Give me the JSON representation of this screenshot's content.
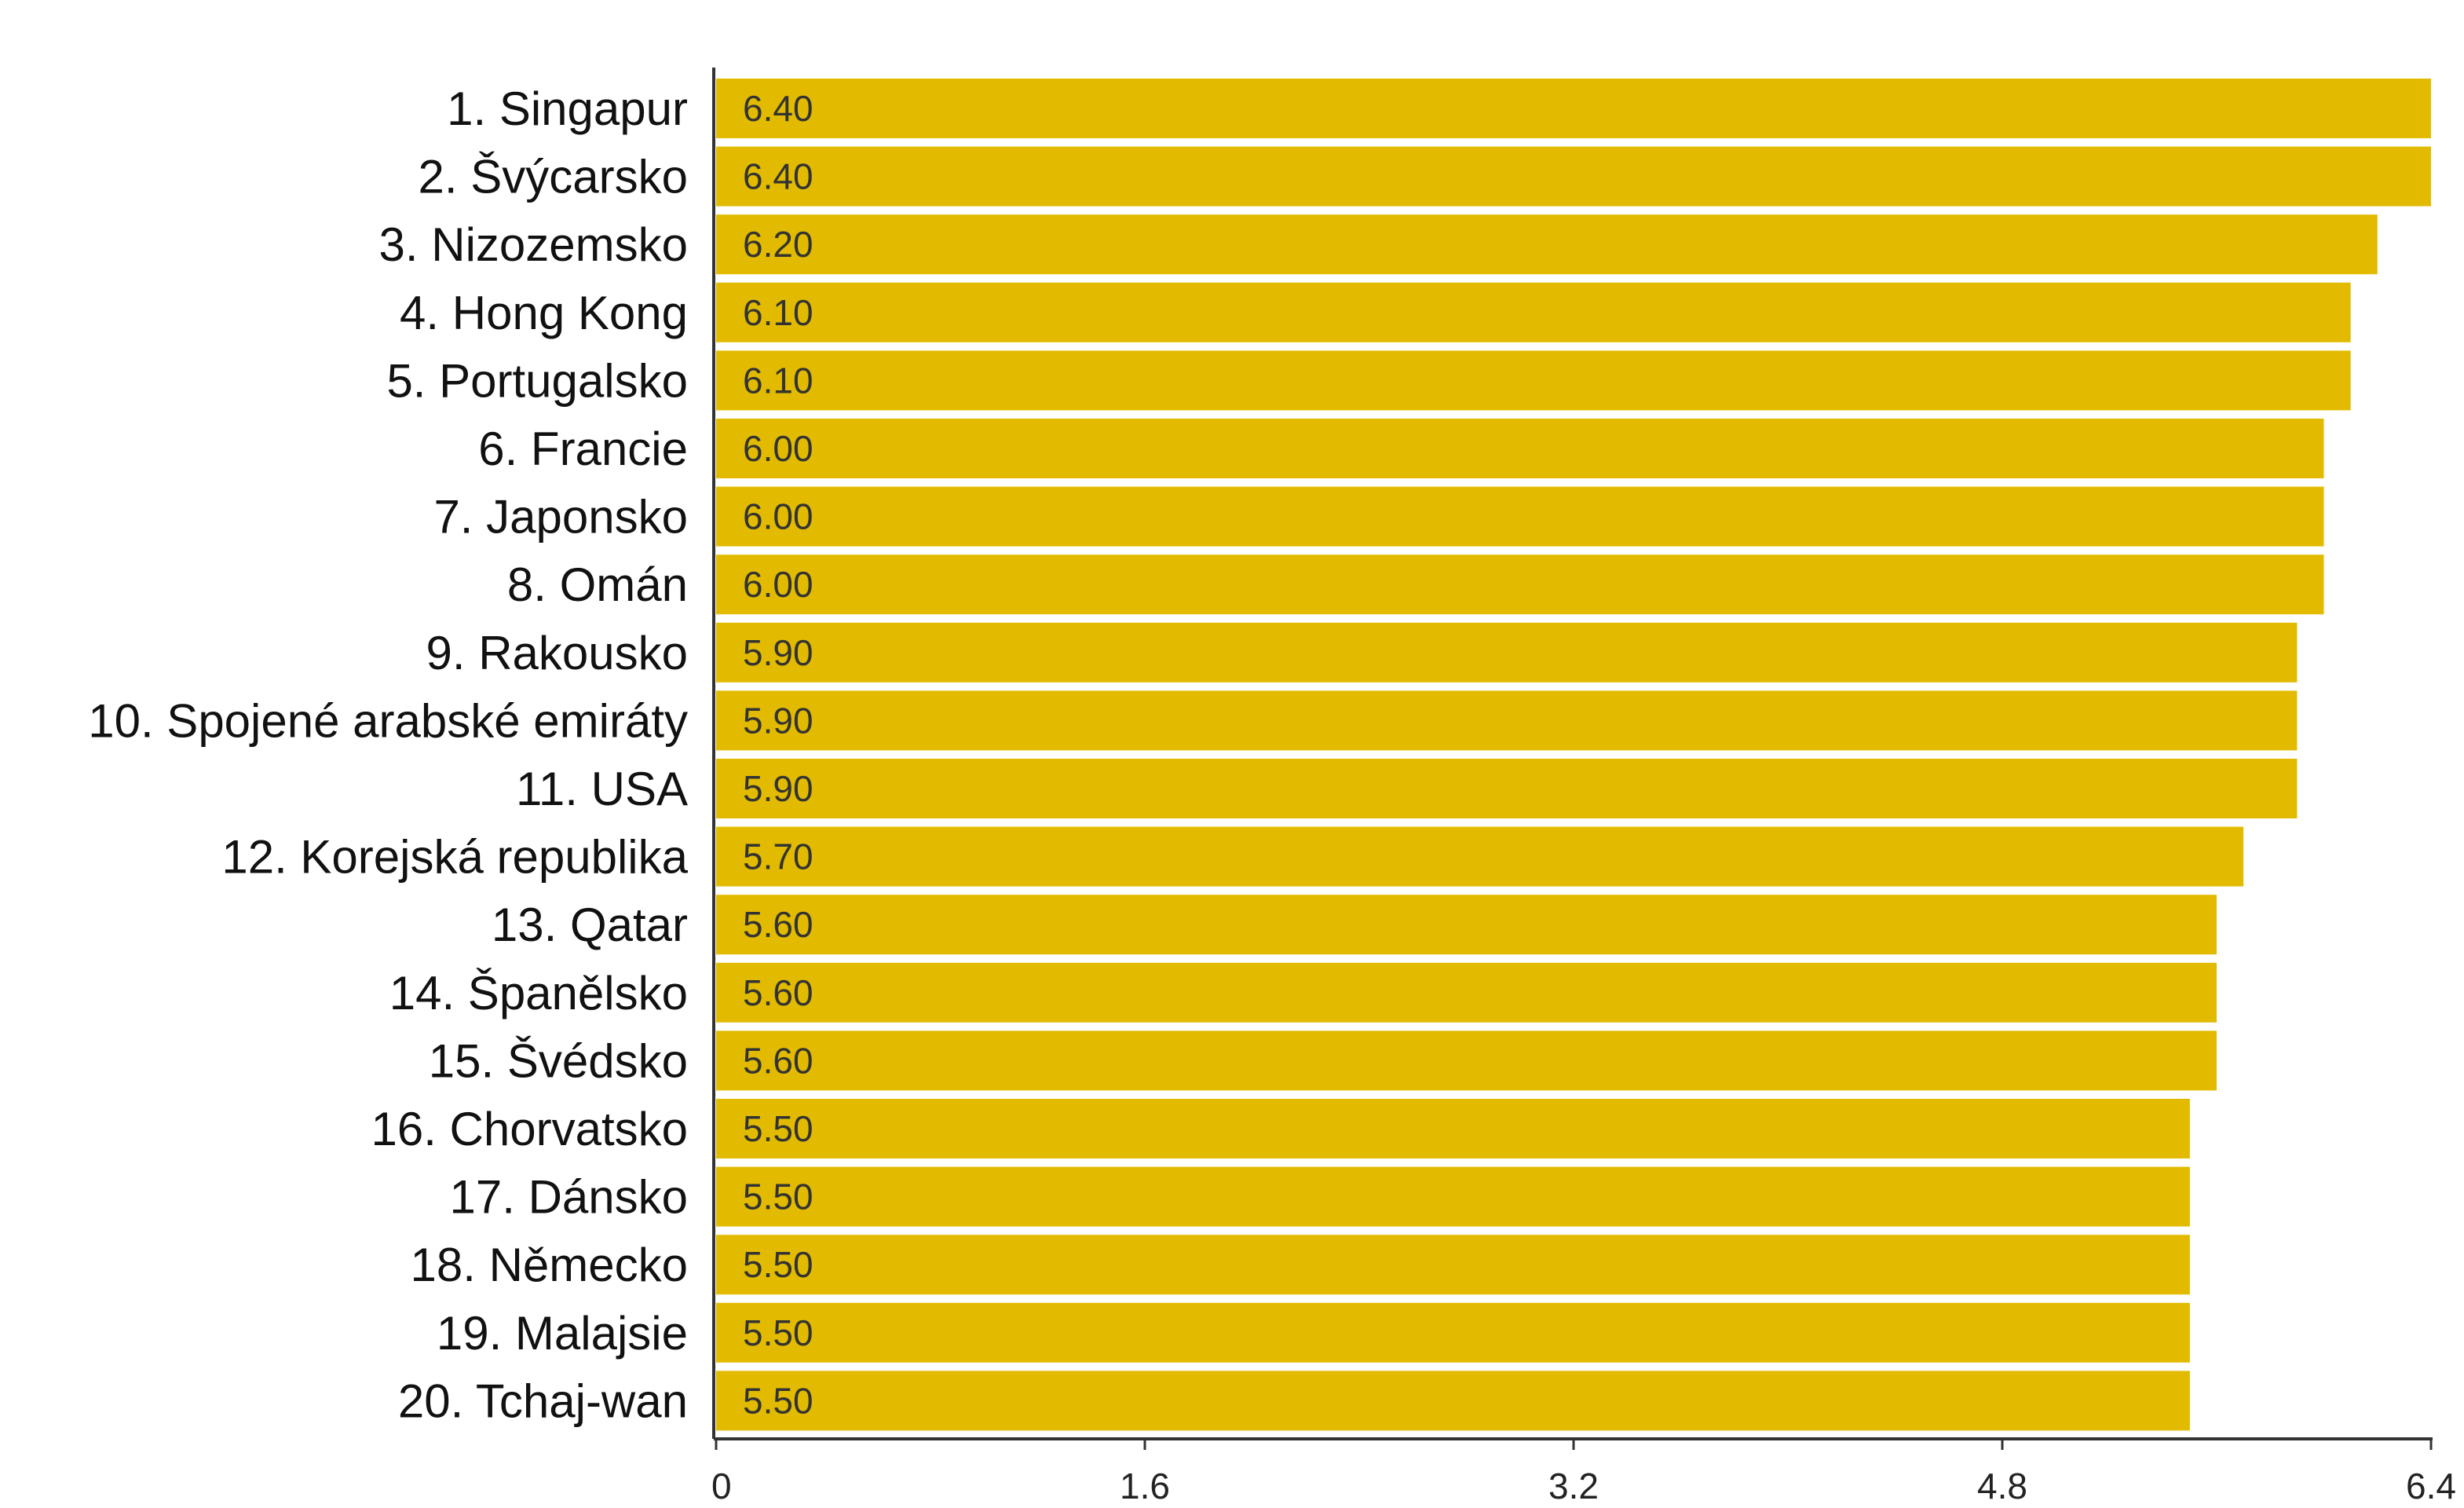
{
  "chart_data": {
    "type": "bar",
    "orientation": "horizontal",
    "categories": [
      "1. Singapur",
      "2. Švýcarsko",
      "3. Nizozemsko",
      "4. Hong Kong",
      "5. Portugalsko",
      "6. Francie",
      "7. Japonsko",
      "8. Omán",
      "9. Rakousko",
      "10. Spojené arabské emiráty",
      "11. USA",
      "12. Korejská republika",
      "13. Qatar",
      "14. Španělsko",
      "15. Švédsko",
      "16. Chorvatsko",
      "17. Dánsko",
      "18. Německo",
      "19. Malajsie",
      "20. Tchaj-wan"
    ],
    "values": [
      6.4,
      6.4,
      6.2,
      6.1,
      6.1,
      6.0,
      6.0,
      6.0,
      5.9,
      5.9,
      5.9,
      5.7,
      5.6,
      5.6,
      5.6,
      5.5,
      5.5,
      5.5,
      5.5,
      5.5
    ],
    "value_labels": [
      "6.40",
      "6.40",
      "6.20",
      "6.10",
      "6.10",
      "6.00",
      "6.00",
      "6.00",
      "5.90",
      "5.90",
      "5.90",
      "5.70",
      "5.60",
      "5.60",
      "5.60",
      "5.50",
      "5.50",
      "5.50",
      "5.50",
      "5.50"
    ],
    "xlim": [
      0,
      6.4
    ],
    "x_ticks": [
      0,
      1.6,
      3.2,
      4.8,
      6.4
    ],
    "x_tick_labels": [
      "0",
      "1.6",
      "3.2",
      "4.8",
      "6.4"
    ],
    "title": "",
    "xlabel": "",
    "ylabel": "",
    "grid": false,
    "legend": "none",
    "bar_color": "#e2bb00",
    "axis_color": "#333333"
  }
}
